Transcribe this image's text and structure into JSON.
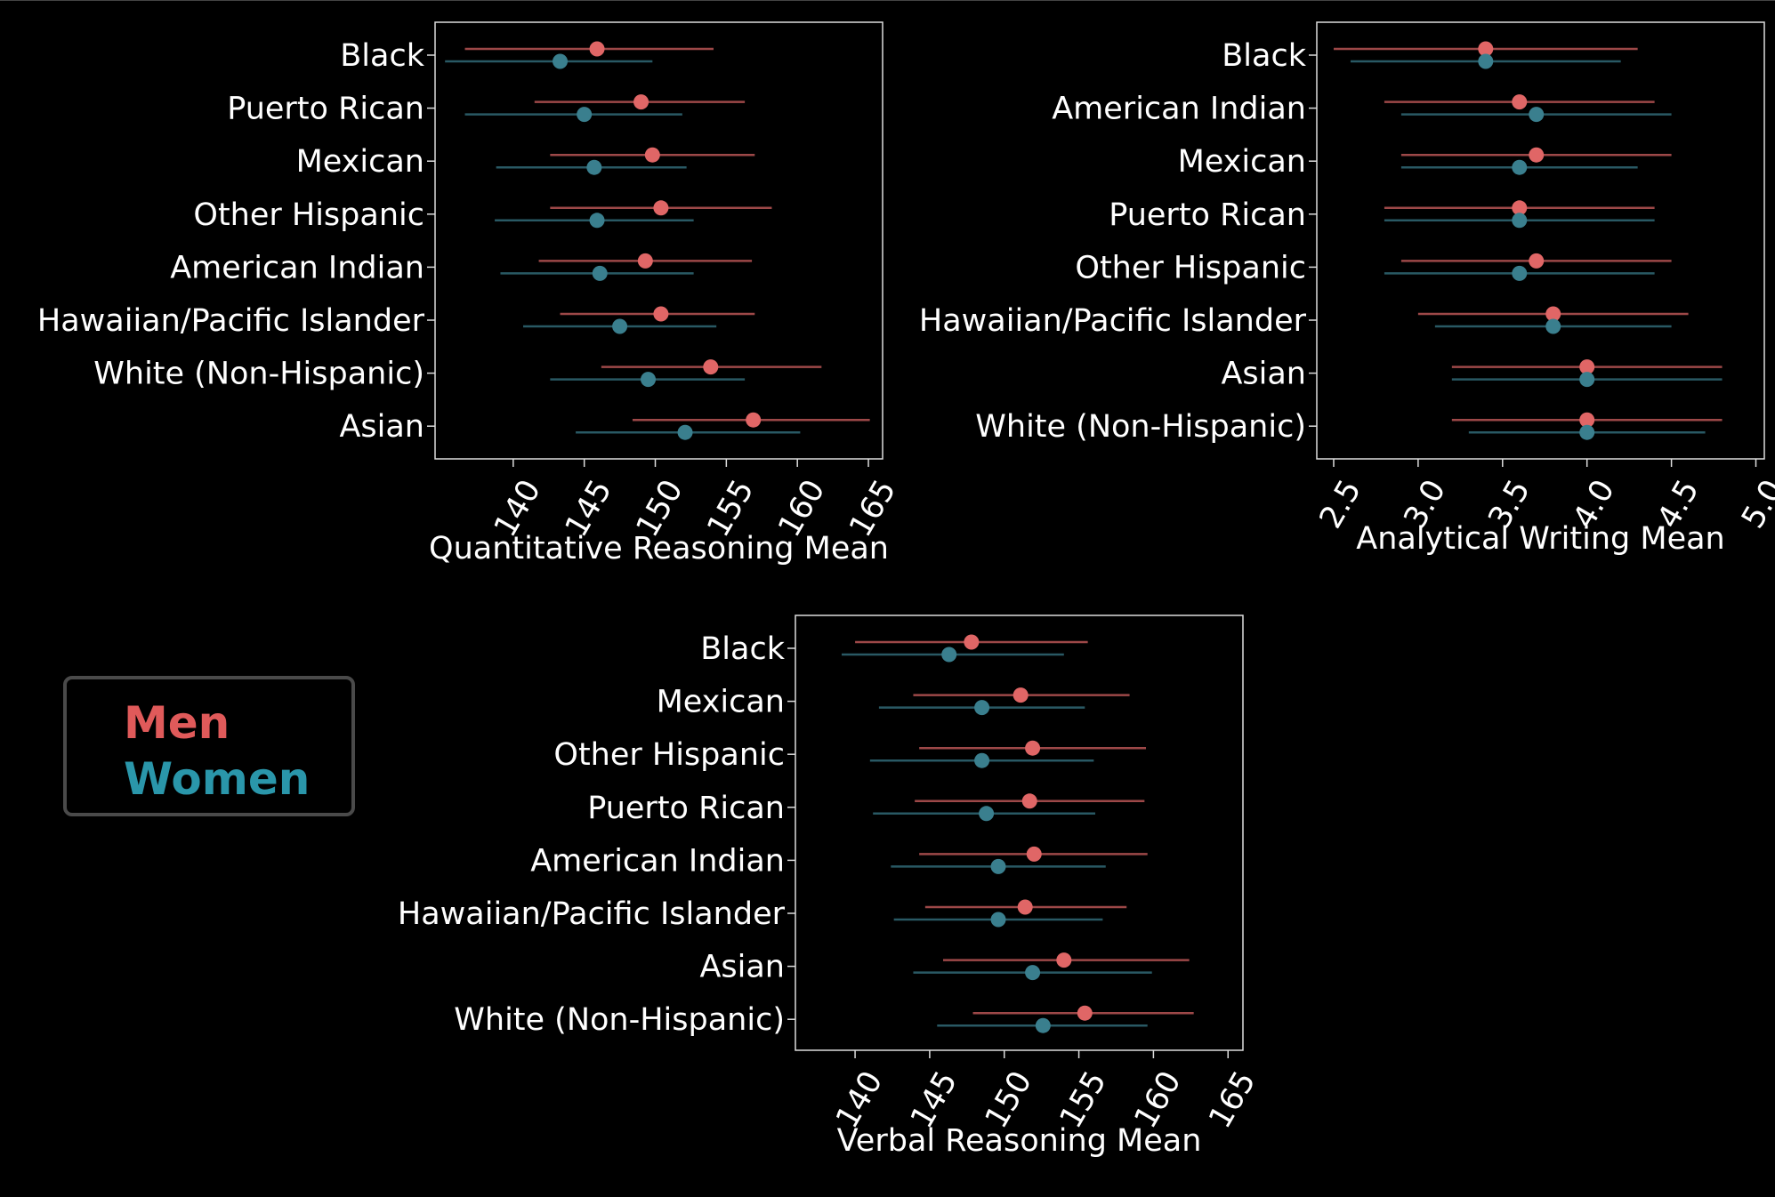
{
  "colors": {
    "background": "#000000",
    "men": "#e06666",
    "women": "#3a7f8e",
    "men_legend": "#e05a5a",
    "women_legend": "#2a96aa",
    "axes": "#dddddd"
  },
  "legend": {
    "men": "Men",
    "women": "Women"
  },
  "chart_data": [
    {
      "type": "scatter",
      "id": "quant",
      "xlabel": "Quantitative Reasoning Mean",
      "xlim": [
        134.5,
        166
      ],
      "xticks": [
        140,
        145,
        150,
        155,
        160,
        165
      ],
      "xtick_labels": [
        "140",
        "145",
        "150",
        "155",
        "160",
        "165"
      ],
      "categories": [
        "Black",
        "Puerto Rican",
        "Mexican",
        "Other Hispanic",
        "American Indian",
        "Hawaiian/Pacific Islander",
        "White (Non-Hispanic)",
        "Asian"
      ],
      "series": [
        {
          "name": "Men",
          "values": [
            145.9,
            149.0,
            149.8,
            150.4,
            149.3,
            150.4,
            153.9,
            156.9
          ],
          "low": [
            136.6,
            141.5,
            142.6,
            142.6,
            141.8,
            143.3,
            146.2,
            148.4
          ],
          "high": [
            154.1,
            156.3,
            157.0,
            158.2,
            156.8,
            157.0,
            161.7,
            165.1
          ]
        },
        {
          "name": "Women",
          "values": [
            143.3,
            145.0,
            145.7,
            145.9,
            146.1,
            147.5,
            149.5,
            152.1
          ],
          "low": [
            135.2,
            136.6,
            138.8,
            138.7,
            139.1,
            140.7,
            142.6,
            144.4
          ],
          "high": [
            149.8,
            151.9,
            152.2,
            152.7,
            152.7,
            154.3,
            156.3,
            160.2
          ]
        }
      ]
    },
    {
      "type": "scatter",
      "id": "writing",
      "xlabel": "Analytical Writing Mean",
      "xlim": [
        2.4,
        5.05
      ],
      "xticks": [
        2.5,
        3.0,
        3.5,
        4.0,
        4.5,
        5.0
      ],
      "xtick_labels": [
        "2.5",
        "3.0",
        "3.5",
        "4.0",
        "4.5",
        "5.0"
      ],
      "categories": [
        "Black",
        "American Indian",
        "Mexican",
        "Puerto Rican",
        "Other Hispanic",
        "Hawaiian/Pacific Islander",
        "Asian",
        "White (Non-Hispanic)"
      ],
      "series": [
        {
          "name": "Men",
          "values": [
            3.4,
            3.6,
            3.7,
            3.6,
            3.7,
            3.8,
            4.0,
            4.0
          ],
          "low": [
            2.5,
            2.8,
            2.9,
            2.8,
            2.9,
            3.0,
            3.2,
            3.2
          ],
          "high": [
            4.3,
            4.4,
            4.5,
            4.4,
            4.5,
            4.6,
            4.8,
            4.8
          ]
        },
        {
          "name": "Women",
          "values": [
            3.4,
            3.7,
            3.6,
            3.6,
            3.6,
            3.8,
            4.0,
            4.0
          ],
          "low": [
            2.6,
            2.9,
            2.9,
            2.8,
            2.8,
            3.1,
            3.2,
            3.3
          ],
          "high": [
            4.2,
            4.5,
            4.3,
            4.4,
            4.4,
            4.5,
            4.8,
            4.7
          ]
        }
      ]
    },
    {
      "type": "scatter",
      "id": "verbal",
      "xlabel": "Verbal Reasoning Mean",
      "xlim": [
        136,
        166
      ],
      "xticks": [
        140,
        145,
        150,
        155,
        160,
        165
      ],
      "xtick_labels": [
        "140",
        "145",
        "150",
        "155",
        "160",
        "165"
      ],
      "categories": [
        "Black",
        "Mexican",
        "Other Hispanic",
        "Puerto Rican",
        "American Indian",
        "Hawaiian/Pacific Islander",
        "Asian",
        "White (Non-Hispanic)"
      ],
      "series": [
        {
          "name": "Men",
          "values": [
            147.8,
            151.1,
            151.9,
            151.7,
            152.0,
            151.4,
            154.0,
            155.4
          ],
          "low": [
            140.0,
            143.9,
            144.3,
            144.0,
            144.3,
            144.7,
            145.9,
            147.9
          ],
          "high": [
            155.6,
            158.4,
            159.5,
            159.4,
            159.6,
            158.2,
            162.4,
            162.7
          ]
        },
        {
          "name": "Women",
          "values": [
            146.3,
            148.5,
            148.5,
            148.8,
            149.6,
            149.6,
            151.9,
            152.6
          ],
          "low": [
            139.1,
            141.6,
            141.0,
            141.2,
            142.4,
            142.6,
            143.9,
            145.5
          ],
          "high": [
            154.0,
            155.4,
            156.0,
            156.1,
            156.8,
            156.6,
            159.9,
            159.6
          ]
        }
      ]
    }
  ]
}
